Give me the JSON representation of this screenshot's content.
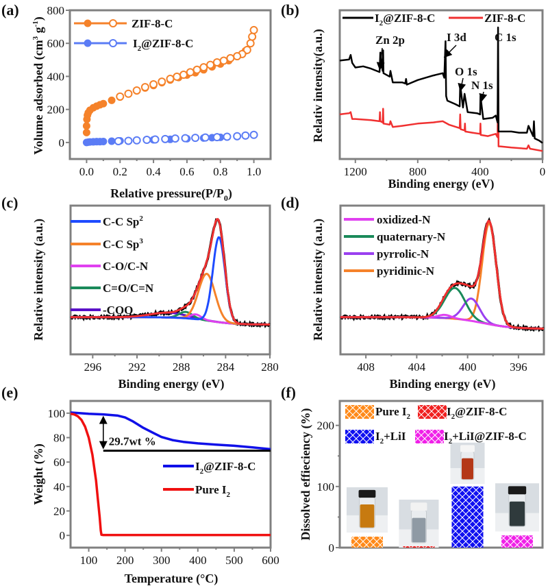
{
  "figure": {
    "panels": [
      "(a)",
      "(b)",
      "(c)",
      "(d)",
      "(e)",
      "(f)"
    ]
  },
  "chart_data": [
    {
      "id": "a",
      "type": "scatter",
      "panel_label": "(a)",
      "xlabel": "Relative pressure(P/P0)",
      "ylabel": "Volume adsorbed (cm3 g-1)",
      "xlim": [
        -0.1,
        1.1
      ],
      "ylim": [
        -100,
        800
      ],
      "xticks": [
        "0.0",
        "0.2",
        "0.4",
        "0.6",
        "0.8",
        "1.0"
      ],
      "xtick_values": [
        0,
        0.2,
        0.4,
        0.6,
        0.8,
        1.0
      ],
      "yticks": [
        "0",
        "200",
        "400",
        "600",
        "800"
      ],
      "ytick_values": [
        0,
        200,
        400,
        600,
        800
      ],
      "legend": "top-left",
      "series": [
        {
          "name": "ZIF-8-C",
          "color": "#f5822a",
          "adsorption": {
            "x": [
              0.0,
              0.0,
              0.002,
              0.005,
              0.01,
              0.02,
              0.04,
              0.06,
              0.08,
              0.1,
              0.15,
              0.2,
              0.25,
              0.3,
              0.35,
              0.4,
              0.45,
              0.5,
              0.55,
              0.6,
              0.65,
              0.7,
              0.75,
              0.8,
              0.85,
              0.9,
              0.95,
              0.98,
              0.99,
              1.0
            ],
            "y": [
              60,
              100,
              140,
              165,
              180,
              195,
              210,
              220,
              228,
              235,
              255,
              275,
              295,
              312,
              330,
              345,
              362,
              378,
              393,
              408,
              422,
              440,
              458,
              475,
              495,
              520,
              555,
              600,
              640,
              680
            ]
          },
          "desorption": {
            "x": [
              1.0,
              0.99,
              0.98,
              0.96,
              0.93,
              0.9,
              0.86,
              0.82,
              0.78,
              0.74,
              0.7,
              0.66,
              0.62,
              0.58,
              0.54,
              0.5,
              0.45,
              0.4,
              0.35,
              0.3,
              0.25,
              0.2
            ],
            "y": [
              680,
              640,
              600,
              560,
              535,
              522,
              510,
              495,
              485,
              470,
              455,
              440,
              425,
              410,
              398,
              385,
              368,
              352,
              335,
              315,
              295,
              278
            ]
          }
        },
        {
          "name": "I2@ZIF-8-C",
          "color": "#5b7cf5",
          "adsorption": {
            "x": [
              0.0,
              0.01,
              0.02,
              0.04,
              0.06,
              0.08,
              0.1,
              0.15,
              0.2,
              0.3,
              0.4,
              0.5,
              0.6,
              0.7,
              0.75,
              0.8,
              0.9,
              0.95,
              1.0
            ],
            "y": [
              0,
              2,
              3,
              4,
              5,
              5,
              6,
              8,
              10,
              13,
              16,
              19,
              23,
              27,
              29,
              31,
              36,
              40,
              46
            ]
          },
          "desorption": {
            "x": [
              1.0,
              0.95,
              0.9,
              0.84,
              0.78,
              0.71,
              0.65,
              0.59,
              0.53,
              0.47,
              0.41,
              0.36,
              0.3,
              0.25,
              0.19
            ],
            "y": [
              46,
              42,
              38,
              35,
              32,
              30,
              28,
              26,
              24,
              21,
              18,
              16,
              13,
              10,
              8
            ]
          }
        }
      ]
    },
    {
      "id": "b",
      "type": "line",
      "panel_label": "(b)",
      "xlabel": "Binding energy (eV)",
      "ylabel": "Relativ intensity(a.u.)",
      "xlim": [
        1300,
        0
      ],
      "xticks": [
        "1200",
        "800",
        "400",
        "0"
      ],
      "xtick_values": [
        1200,
        800,
        400,
        0
      ],
      "legend": "top",
      "annotations": [
        "Zn 2p",
        "I 3d",
        "O 1s",
        "N 1s",
        "C 1s"
      ],
      "annotation_x": [
        1045,
        620,
        531,
        400,
        285
      ],
      "series": [
        {
          "name": "I2@ZIF-8-C",
          "color": "#000000",
          "x": [
            1300,
            1240,
            1230,
            1220,
            1200,
            1150,
            1100,
            1045,
            1040,
            1025,
            1022,
            1020,
            980,
            975,
            960,
            900,
            880,
            875,
            870,
            800,
            700,
            640,
            630,
            622,
            618,
            610,
            560,
            531,
            528,
            510,
            500,
            480,
            420,
            400,
            398,
            380,
            320,
            300,
            288,
            285,
            282,
            270,
            200,
            150,
            100,
            90,
            60,
            55,
            50,
            20,
            0
          ],
          "y": [
            0.71,
            0.72,
            0.76,
            0.69,
            0.65,
            0.66,
            0.64,
            0.61,
            0.78,
            0.62,
            0.8,
            0.6,
            0.57,
            0.62,
            0.52,
            0.52,
            0.51,
            0.55,
            0.5,
            0.54,
            0.58,
            0.6,
            0.56,
            0.88,
            0.4,
            0.36,
            0.33,
            0.31,
            0.5,
            0.3,
            0.42,
            0.26,
            0.25,
            0.24,
            0.4,
            0.2,
            0.21,
            0.23,
            0.17,
            1.0,
            0.09,
            0.09,
            0.09,
            0.08,
            0.08,
            0.14,
            0.05,
            0.18,
            0.03,
            0.01,
            -0.01
          ]
        },
        {
          "name": "ZIF-8-C",
          "color": "#f03030",
          "x": [
            1300,
            1240,
            1230,
            1220,
            1200,
            1100,
            1045,
            1042,
            1040,
            1025,
            1022,
            1020,
            980,
            975,
            960,
            900,
            800,
            700,
            640,
            600,
            531,
            528,
            525,
            500,
            497,
            495,
            450,
            400,
            398,
            396,
            350,
            300,
            288,
            285,
            282,
            270,
            200,
            100,
            90,
            80,
            0
          ],
          "y": [
            0.24,
            0.25,
            0.26,
            0.2,
            0.2,
            0.19,
            0.18,
            0.26,
            0.18,
            0.17,
            0.29,
            0.16,
            0.15,
            0.18,
            0.13,
            0.14,
            0.16,
            0.17,
            0.18,
            0.15,
            0.12,
            0.24,
            0.11,
            0.1,
            0.16,
            0.09,
            0.08,
            0.07,
            0.16,
            0.06,
            0.05,
            0.07,
            0.04,
            0.64,
            -0.04,
            -0.04,
            -0.05,
            -0.06,
            -0.03,
            -0.06,
            -0.08
          ]
        }
      ]
    },
    {
      "id": "c",
      "type": "line",
      "panel_label": "(c)",
      "xlabel": "Binding energy (eV)",
      "ylabel": "Relative intensity (a.u.)",
      "xlim": [
        298,
        280
      ],
      "xticks": [
        "296",
        "292",
        "288",
        "284",
        "280"
      ],
      "xtick_values": [
        296,
        292,
        288,
        284,
        280
      ],
      "legend": "top-left",
      "components": [
        {
          "name": "C-C Sp2",
          "color": "#1e4bff",
          "center": 284.6,
          "height": 0.8,
          "width": 0.55
        },
        {
          "name": "C-C Sp3",
          "color": "#f5822a",
          "center": 285.7,
          "height": 0.44,
          "width": 0.75
        },
        {
          "name": "C-O/C-N",
          "color": "#e040f0",
          "center": 286.7,
          "height": 0.045,
          "width": 0.5
        },
        {
          "name": "C=O/C=N",
          "color": "#1a8a5a",
          "center": 287.6,
          "height": 0.06,
          "width": 0.6
        },
        {
          "name": "-COO",
          "color": "#5a10c8",
          "center": 289.2,
          "height": 0.045,
          "width": 1.6
        }
      ],
      "envelope_color": "#f03030",
      "raw_color": "#000000",
      "baseline": {
        "high_be": 0.0,
        "low_be": -0.07,
        "step_center": 285.5
      }
    },
    {
      "id": "d",
      "type": "line",
      "panel_label": "(d)",
      "xlabel": "Binding energy (eV)",
      "ylabel": "Relative intensity (a.u.)",
      "xlim": [
        410,
        394
      ],
      "xticks": [
        "408",
        "404",
        "400",
        "396"
      ],
      "xtick_values": [
        408,
        404,
        400,
        396
      ],
      "legend": "top-left",
      "components": [
        {
          "name": "oxidized-N",
          "color": "#e040f0",
          "center": 401.8,
          "height": 0.03,
          "width": 0.5
        },
        {
          "name": "quaternary-N",
          "color": "#1a8a5a",
          "center": 401.0,
          "height": 0.29,
          "width": 0.8
        },
        {
          "name": "pyrrolic-N",
          "color": "#9a40f0",
          "center": 399.7,
          "height": 0.21,
          "width": 0.65
        },
        {
          "name": "pyridinic-N",
          "color": "#f5822a",
          "center": 398.3,
          "height": 0.95,
          "width": 0.55
        }
      ],
      "envelope_color": "#f03030",
      "raw_color": "#000000",
      "baseline": {
        "high_be": 0.0,
        "low_be": -0.11,
        "step_center": 398.8
      }
    },
    {
      "id": "e",
      "type": "line",
      "panel_label": "(e)",
      "xlabel": "Temperature (°C)",
      "ylabel": "Weight (%)",
      "xlim": [
        50,
        600
      ],
      "ylim": [
        -10,
        110
      ],
      "xticks": [
        "100",
        "200",
        "300",
        "400",
        "500",
        "600"
      ],
      "xtick_values": [
        100,
        200,
        300,
        400,
        500,
        600
      ],
      "yticks": [
        "0",
        "20",
        "40",
        "60",
        "80",
        "100"
      ],
      "ytick_values": [
        0,
        20,
        40,
        60,
        80,
        100
      ],
      "legend": "center-right",
      "annotation": "29.7wt %",
      "annotation_range": [
        99.0,
        69.3
      ],
      "annotation_x": 140,
      "series": [
        {
          "name": "I2@ZIF-8-C",
          "color": "#1010e8",
          "x": [
            50,
            100,
            140,
            180,
            200,
            220,
            250,
            280,
            300,
            330,
            360,
            400,
            450,
            500,
            550,
            600
          ],
          "y": [
            100.5,
            99.5,
            99.0,
            98.0,
            96.5,
            93.5,
            88.0,
            83.5,
            80.5,
            78.0,
            76.5,
            75.3,
            74.2,
            73.3,
            72.0,
            70.5
          ]
        },
        {
          "name": "Pure I2",
          "color": "#f01010",
          "x": [
            50,
            60,
            70,
            80,
            90,
            100,
            110,
            120,
            125,
            130,
            133,
            135,
            140,
            200,
            300,
            400,
            500,
            600
          ],
          "y": [
            99.5,
            99.0,
            97.5,
            94.5,
            89.0,
            80.0,
            66.0,
            45.0,
            30.0,
            15.0,
            4.0,
            0.5,
            0.3,
            0.3,
            0.3,
            0.3,
            0.3,
            0.3
          ]
        }
      ]
    },
    {
      "id": "f",
      "type": "bar",
      "panel_label": "(f)",
      "xlabel": "",
      "ylabel": "Dissolved effieciency (%)",
      "ylim": [
        0,
        240
      ],
      "yticks": [
        "0",
        "100",
        "200"
      ],
      "ytick_values": [
        0,
        100,
        200
      ],
      "legend": "top",
      "categories": [
        "Pure I2",
        "I2@ZIF-8-C",
        "I2+LiI",
        "I2+LiI@ZIF-8-C"
      ],
      "values": [
        18,
        2,
        100,
        20
      ],
      "colors": [
        "#ff8a1a",
        "#f02020",
        "#1010f0",
        "#f020e8"
      ],
      "hatch": "crosshatch",
      "insets": [
        {
          "for": "Pure I2",
          "liquid": "#c77a10",
          "cap": "#1a1a1a"
        },
        {
          "for": "I2@ZIF-8-C",
          "liquid": "#8f9aa4",
          "cap": "#f2f2f2"
        },
        {
          "for": "I2+LiI",
          "liquid": "#b43818",
          "cap": "#f5f5f5"
        },
        {
          "for": "I2+LiI@ZIF-8-C",
          "liquid": "#2f3a3c",
          "cap": "#1a1a1a"
        }
      ]
    }
  ],
  "labels": {
    "a_xlabel_main": "Relative pressure(P/P",
    "a_xlabel_sub": "0",
    "a_xlabel_end": ")",
    "a_ylabel_main": "Volume adsorbed (cm",
    "a_ylabel_sup1": "3",
    "a_ylabel_mid": " g",
    "a_ylabel_sup2": "-1",
    "a_ylabel_end": ")",
    "leg_zif": "ZIF-8-C",
    "leg_i2_pre": "I",
    "leg_i2_sub": "2",
    "leg_i2_post": "@ZIF-8-C",
    "b_ylabel": "Relativ intensity(a.u.)",
    "be_label": "Binding energy (eV)",
    "rel_int": "Relative intensity (a.u.)",
    "c_leg_sp2": "C-C Sp",
    "c_leg_sp2_sup": "2",
    "c_leg_sp3": "C-C Sp",
    "c_leg_sp3_sup": "3",
    "c_leg_co": "C-O/C-N",
    "c_leg_cdo": "C=O/C=N",
    "c_leg_coo": "-COO",
    "d_leg_ox": "oxidized-N",
    "d_leg_q": "quaternary-N",
    "d_leg_pyrr": "pyrrolic-N",
    "d_leg_pyri": "pyridinic-N",
    "e_xlabel": "Temperature (°C)",
    "e_ylabel": "Weight (%)",
    "e_annot": "29.7wt %",
    "e_leg_pure_pre": "Pure I",
    "e_leg_pure_sub": "2",
    "f_ylabel": "Dissolved effieciency (%)",
    "f_leg_pure_pre": "Pure I",
    "f_leg_pure_sub": "2",
    "f_leg_lii_post": "+LiI",
    "f_leg_liizif_post": "+LiI@ZIF-8-C",
    "b_ann_zn": "Zn 2p",
    "b_ann_i": "I 3d",
    "b_ann_o": "O 1s",
    "b_ann_n": "N 1s",
    "b_ann_c": "C 1s"
  }
}
